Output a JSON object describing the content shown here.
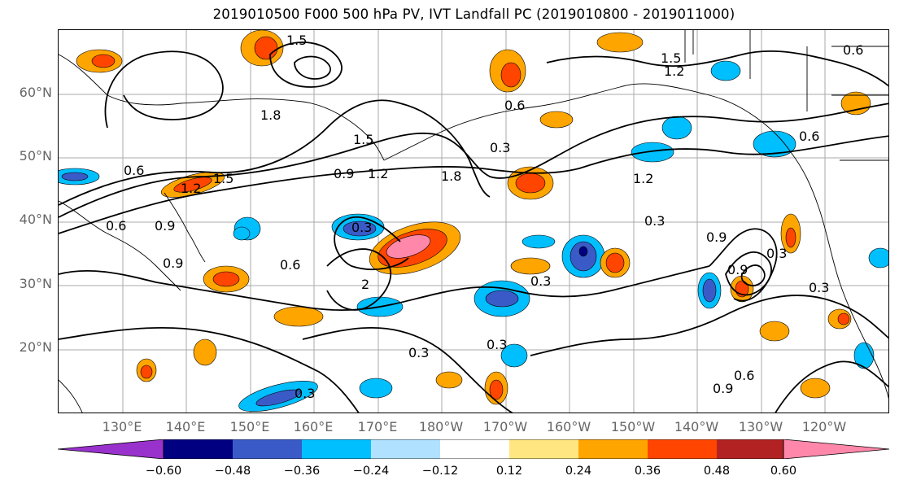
{
  "title": "2019010500 F000 500 hPa PV, IVT Landfall PC (2019010800 - 2019011000)",
  "lat_labels": [
    "60°N",
    "50°N",
    "40°N",
    "30°N",
    "20°N"
  ],
  "lon_labels": [
    "130°E",
    "140°E",
    "150°E",
    "160°E",
    "170°E",
    "180°W",
    "170°W",
    "160°W",
    "150°W",
    "140°W",
    "130°W",
    "120°W"
  ],
  "colorbar": {
    "ticks": [
      "−0.60",
      "−0.48",
      "−0.36",
      "−0.24",
      "−0.12",
      "0.12",
      "0.24",
      "0.36",
      "0.48",
      "0.60"
    ],
    "colors": [
      "#9932cc",
      "#000080",
      "#3a5bc7",
      "#00bfff",
      "#b0e2ff",
      "#ffffff",
      "#ffe680",
      "#ffa500",
      "#ff4500",
      "#b22222",
      "#ff88aa"
    ]
  },
  "contour_labels": [
    "0.6",
    "0.9",
    "1.2",
    "1.5",
    "1.8",
    "2",
    "0.3"
  ],
  "contour_label_values": {
    "a": "1.5",
    "b": "1.8",
    "c": "1.5",
    "d": "0.9",
    "e": "1.2",
    "f": "1.8",
    "g": "0.3",
    "h": "0.6",
    "i": "0.9",
    "j": "1.2",
    "k": "1.5",
    "l": "0.9",
    "m": "0.6",
    "n": "0.3",
    "o": "2",
    "p": "0.6",
    "q": "0.3",
    "r": "0.3",
    "s": "0.3",
    "t": "0.3",
    "u": "0.9",
    "v": "0.3",
    "w": "0.6",
    "x": "0.9",
    "y": "0.3",
    "z": "1.2",
    "aa": "1.5",
    "ab": "0.6",
    "ac": "0.6",
    "ad": "0.3",
    "ae": "0.9",
    "af": "0.6",
    "ag": "1.2"
  }
}
